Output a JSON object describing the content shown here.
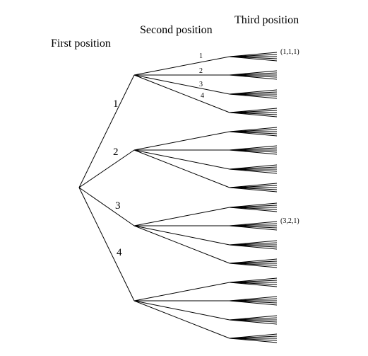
{
  "headings": {
    "first": "First position",
    "second": "Second position",
    "third": "Third position"
  },
  "first_level_labels": [
    "1",
    "2",
    "3",
    "4"
  ],
  "second_level_labels": [
    "1",
    "2",
    "3",
    "4"
  ],
  "leaf_annotations": [
    {
      "text": "(1,1,1)"
    },
    {
      "text": "(3,2,1)"
    }
  ]
}
